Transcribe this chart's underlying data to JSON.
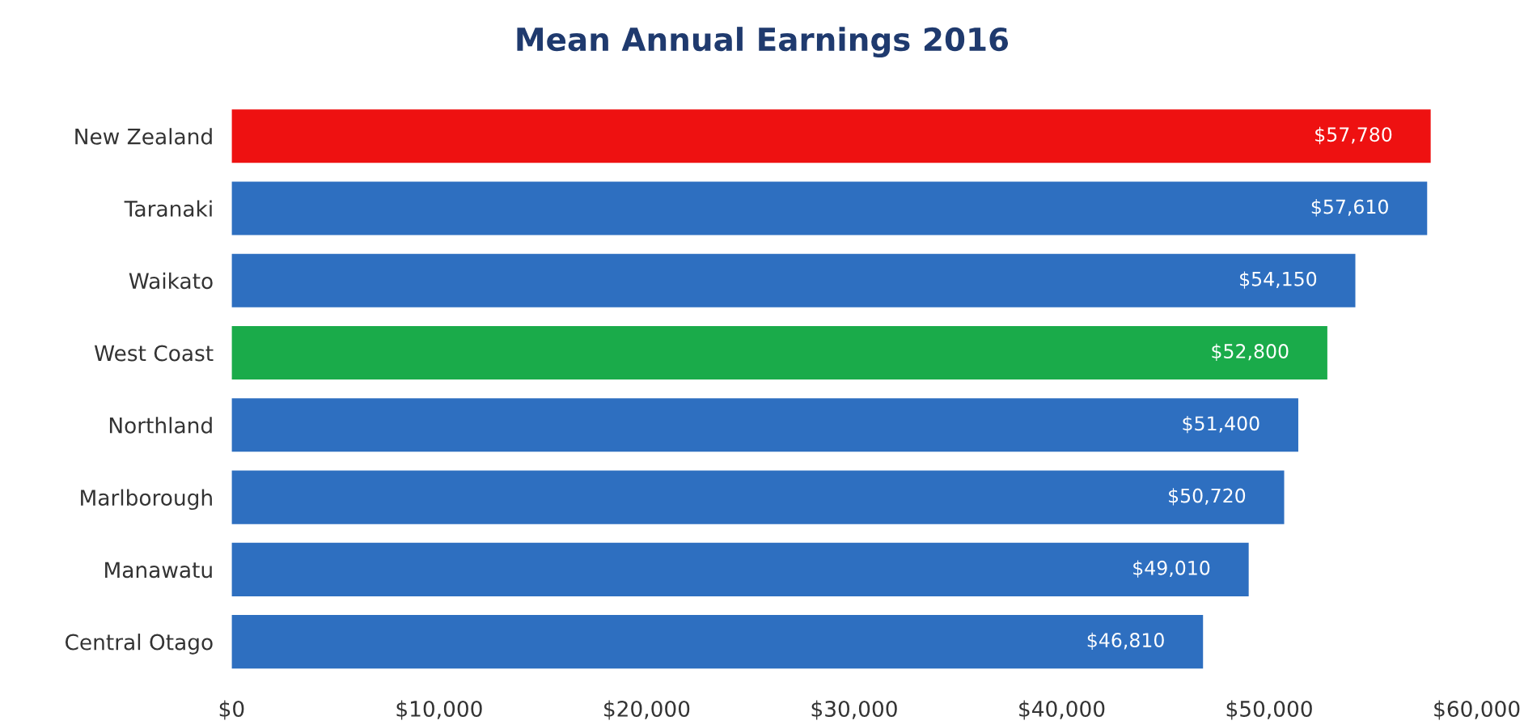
{
  "chart_data": {
    "type": "bar",
    "orientation": "horizontal",
    "title": "Mean Annual Earnings 2016",
    "categories": [
      "New Zealand",
      "Taranaki",
      "Waikato",
      "West Coast",
      "Northland",
      "Marlborough",
      "Manawatu",
      "Central Otago"
    ],
    "values": [
      57780,
      57610,
      54150,
      52800,
      51400,
      50720,
      49010,
      46810
    ],
    "colors": [
      "#ee1111",
      "#2e6fc0",
      "#2e6fc0",
      "#1aab4a",
      "#2e6fc0",
      "#2e6fc0",
      "#2e6fc0",
      "#2e6fc0"
    ],
    "value_labels": [
      "$57,780",
      "$57,610",
      "$54,150",
      "$52,800",
      "$51,400",
      "$50,720",
      "$49,010",
      "$46,810"
    ],
    "xlim": [
      0,
      60000
    ],
    "xticks": [
      {
        "value": 0,
        "label": "$0"
      },
      {
        "value": 10000,
        "label": "$10,000"
      },
      {
        "value": 20000,
        "label": "$20,000"
      },
      {
        "value": 30000,
        "label": "$30,000"
      },
      {
        "value": 40000,
        "label": "$40,000"
      },
      {
        "value": 50000,
        "label": "$50,000"
      },
      {
        "value": 60000,
        "label": "$60,000"
      }
    ],
    "grid": false,
    "legend": false
  }
}
